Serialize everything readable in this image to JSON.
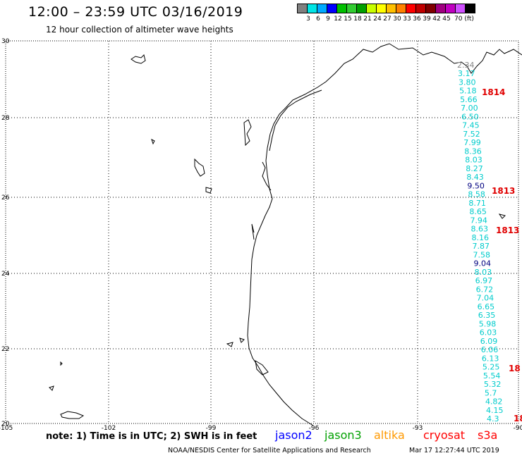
{
  "header": {
    "title": "12:00 – 23:59 UTC 03/16/2019",
    "subtitle": "12 hour collection of altimeter wave heights"
  },
  "colorbar": {
    "colors": [
      "#808080",
      "#00e5e5",
      "#00aaff",
      "#0000ff",
      "#00c000",
      "#32cd32",
      "#00a000",
      "#c8ff00",
      "#ffff00",
      "#ffc000",
      "#ff8000",
      "#ff0000",
      "#c00000",
      "#800000",
      "#a00080",
      "#c000c0",
      "#d050ff",
      "#000000"
    ],
    "labels": [
      "3",
      "6",
      "9",
      "12",
      "15",
      "18",
      "21",
      "24",
      "27",
      "30",
      "33",
      "36",
      "39",
      "42",
      "45",
      "70 (ft)"
    ]
  },
  "map": {
    "lat_labels": [
      "30",
      "28",
      "26",
      "24",
      "22",
      "20"
    ],
    "lon_labels": [
      "-105",
      "-102",
      "-99",
      "-96",
      "-93",
      "-90"
    ],
    "wave_color": "#00cccc",
    "pass_color": "#e00000",
    "wave_values": [
      "2.34",
      "3.17",
      "3.80",
      "5.18",
      "5.66",
      "7.00",
      "6.50",
      "7.45",
      "7.52",
      "7.99",
      "8.36",
      "8.03",
      "8.27",
      "8.43",
      "9.50",
      "8.58",
      "8.71",
      "8.65",
      "7.94",
      "8.63",
      "8.16",
      "7.87",
      "7.58",
      "9.04",
      "8.03",
      "6.97",
      "6.72",
      "7.04",
      "6.65",
      "6.35",
      "5.98",
      "6.03",
      "6.09",
      "6.06",
      "6.13",
      "5.25",
      "5.54",
      "5.32",
      "5.7",
      "4.82",
      "4.15",
      "4.3"
    ],
    "pass_labels": [
      "1814",
      "1813",
      "1813",
      "18",
      "18"
    ]
  },
  "footer": {
    "note": "note: 1) Time is in UTC; 2) SWH is in feet",
    "satellites": [
      {
        "name": "jason2",
        "color": "#0000ff"
      },
      {
        "name": "jason3",
        "color": "#00a000"
      },
      {
        "name": "altika",
        "color": "#ff9900"
      },
      {
        "name": "cryosat",
        "color": "#ff0000"
      },
      {
        "name": "s3a",
        "color": "#ff0000"
      }
    ],
    "credit": "NOAA/NESDIS Center for Satellite Applications and Research",
    "timestamp": "Mar 17 12:27:44 UTC 2019"
  }
}
